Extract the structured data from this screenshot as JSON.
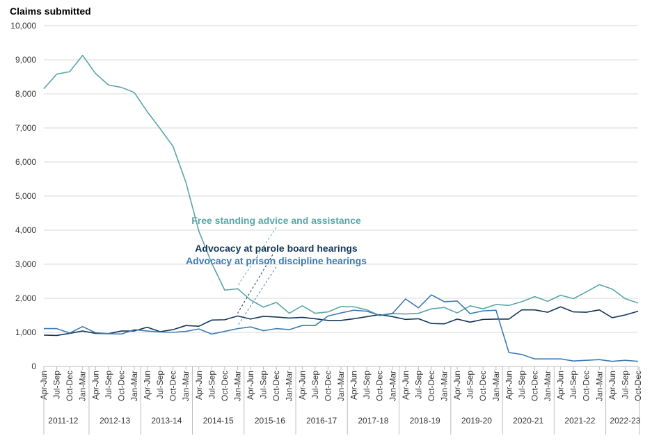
{
  "chart_data": {
    "type": "line",
    "ylabel": "Claims submitted",
    "ylim": [
      0,
      10000
    ],
    "ytick_values": [
      0,
      1000,
      2000,
      3000,
      4000,
      5000,
      6000,
      7000,
      8000,
      9000,
      10000
    ],
    "ytick_labels": [
      "0",
      "1,000",
      "2,000",
      "3,000",
      "4,000",
      "5,000",
      "6,000",
      "7,000",
      "8,000",
      "9,000",
      "10,000"
    ],
    "grid": true,
    "categories": [
      "Apr-Jun",
      "Jul-Sep",
      "Oct-Dec",
      "Jan-Mar",
      "Apr-Jun",
      "Jul-Sep",
      "Oct-Dec",
      "Jan-Mar",
      "Apr-Jun",
      "Jul-Sep",
      "Oct-Dec",
      "Jan-Mar",
      "Apr-Jun",
      "Jul-Sep",
      "Oct-Dec",
      "Jan-Mar",
      "Apr-Jun",
      "Jul-Sep",
      "Oct-Dec",
      "Jan-Mar",
      "Apr-Jun",
      "Jul-Sep",
      "Oct-Dec",
      "Jan-Mar",
      "Apr-Jun",
      "Jul-Sep",
      "Oct-Dec",
      "Jan-Mar",
      "Apr-Jun",
      "Jul-Sep",
      "Oct-Dec",
      "Jan-Mar",
      "Apr-Jun",
      "Jul-Sep",
      "Oct-Dec",
      "Jan-Mar",
      "Apr-Jun",
      "Jul-Sep",
      "Oct-Dec",
      "Jan-Mar",
      "Apr-Jun",
      "Jul-Sep",
      "Oct-Dec",
      "Jan-Mar",
      "Apr-Jun",
      "Jul-Sep",
      "Oct-Dec"
    ],
    "financial_years": [
      {
        "label": "2011-12",
        "quarters": 4
      },
      {
        "label": "2012-13",
        "quarters": 4
      },
      {
        "label": "2013-14",
        "quarters": 4
      },
      {
        "label": "2014-15",
        "quarters": 4
      },
      {
        "label": "2015-16",
        "quarters": 4
      },
      {
        "label": "2016-17",
        "quarters": 4
      },
      {
        "label": "2017-18",
        "quarters": 4
      },
      {
        "label": "2018-19",
        "quarters": 4
      },
      {
        "label": "2019-20",
        "quarters": 4
      },
      {
        "label": "2020-21",
        "quarters": 4
      },
      {
        "label": "2021-22",
        "quarters": 4
      },
      {
        "label": "2022-23",
        "quarters": 3
      }
    ],
    "series": [
      {
        "name": "Free standing advice and assistance",
        "color": "#5aa6a6",
        "values": [
          8150,
          8580,
          8650,
          9130,
          8600,
          8260,
          8190,
          8040,
          7480,
          6980,
          6460,
          5400,
          3970,
          3030,
          2240,
          2280,
          1950,
          1740,
          1880,
          1560,
          1780,
          1560,
          1600,
          1760,
          1750,
          1660,
          1490,
          1550,
          1540,
          1560,
          1690,
          1730,
          1570,
          1780,
          1690,
          1820,
          1790,
          1900,
          2050,
          1910,
          2090,
          1990,
          2190,
          2400,
          2270,
          1990,
          1860
        ]
      },
      {
        "name": "Advocacy at parole board hearings",
        "color": "#12355b",
        "values": [
          920,
          910,
          970,
          1040,
          970,
          960,
          1040,
          1040,
          1150,
          1020,
          1080,
          1200,
          1180,
          1360,
          1370,
          1480,
          1390,
          1470,
          1450,
          1420,
          1440,
          1400,
          1350,
          1350,
          1400,
          1460,
          1520,
          1460,
          1380,
          1400,
          1260,
          1250,
          1390,
          1300,
          1380,
          1390,
          1390,
          1660,
          1660,
          1590,
          1750,
          1600,
          1590,
          1660,
          1430,
          1510,
          1620
        ]
      },
      {
        "name": "Advocacy at prison discipline hearings",
        "color": "#3d7bb3",
        "values": [
          1110,
          1110,
          980,
          1170,
          990,
          960,
          950,
          1080,
          1040,
          1010,
          1000,
          1030,
          1100,
          950,
          1030,
          1110,
          1160,
          1050,
          1110,
          1080,
          1200,
          1200,
          1480,
          1570,
          1650,
          1620,
          1500,
          1560,
          1980,
          1720,
          2100,
          1900,
          1920,
          1550,
          1630,
          1650,
          410,
          350,
          220,
          220,
          220,
          160,
          180,
          200,
          150,
          180,
          150
        ]
      }
    ]
  }
}
